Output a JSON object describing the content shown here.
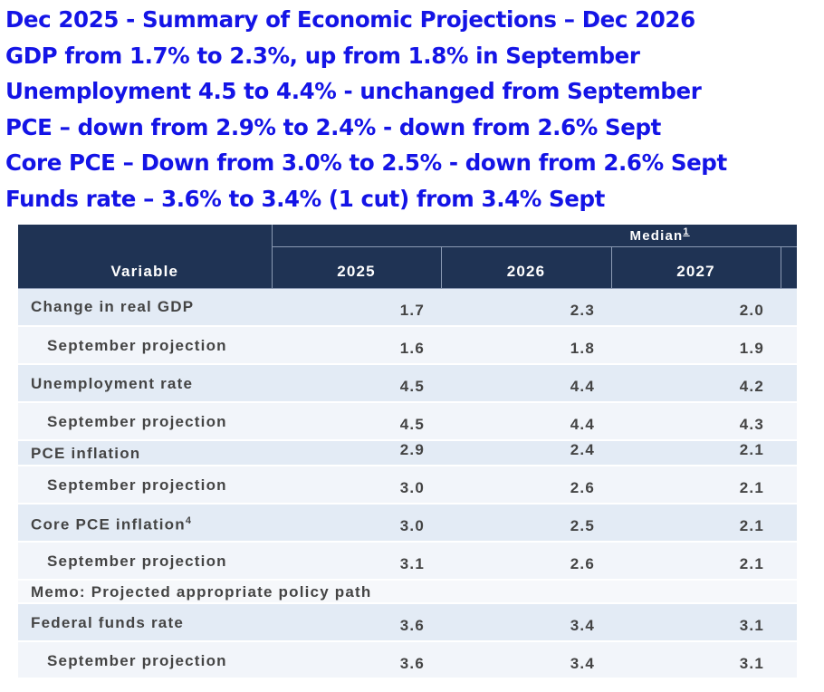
{
  "header": {
    "lines": [
      "Dec 2025 - Summary of Economic Projections – Dec 2026",
      "GDP from 1.7% to 2.3%, up from 1.8% in September",
      "Unemployment 4.5 to 4.4% - unchanged from September",
      "PCE – down from 2.9% to 2.4% - down from 2.6% Sept",
      "Core PCE – Down from 3.0% to 2.5% - down from 2.6% Sept",
      "Funds rate – 3.6% to 3.4% (1 cut) from 3.4% Sept"
    ]
  },
  "table": {
    "median_label": "Median",
    "median_note": "1",
    "columns": [
      "Variable",
      "2025",
      "2026",
      "2027"
    ],
    "rows": [
      {
        "label": "Change in real GDP",
        "values": [
          "1.7",
          "2.3",
          "2.0"
        ]
      },
      {
        "label": "September projection",
        "indent": true,
        "values": [
          "1.6",
          "1.8",
          "1.9"
        ]
      },
      {
        "label": "Unemployment rate",
        "values": [
          "4.5",
          "4.4",
          "4.2"
        ]
      },
      {
        "label": "September projection",
        "indent": true,
        "values": [
          "4.5",
          "4.4",
          "4.3"
        ]
      },
      {
        "label": "PCE inflation",
        "values": [
          "2.9",
          "2.4",
          "2.1"
        ]
      },
      {
        "label": "September projection",
        "indent": true,
        "values": [
          "3.0",
          "2.6",
          "2.1"
        ]
      },
      {
        "label": "Core PCE inflation",
        "note": "4",
        "values": [
          "3.0",
          "2.5",
          "2.1"
        ]
      },
      {
        "label": "September projection",
        "indent": true,
        "values": [
          "3.1",
          "2.6",
          "2.1"
        ]
      },
      {
        "label": "Memo: Projected appropriate policy path"
      },
      {
        "label": "Federal funds rate",
        "values": [
          "3.6",
          "3.4",
          "3.1"
        ]
      },
      {
        "label": "September projection",
        "indent": true,
        "values": [
          "3.6",
          "3.4",
          "3.1"
        ]
      }
    ]
  }
}
